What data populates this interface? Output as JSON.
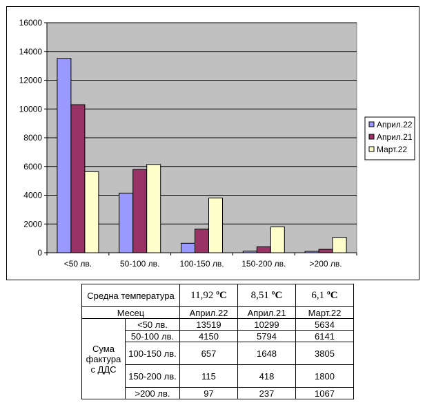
{
  "chart_data": {
    "type": "bar",
    "categories": [
      "<50 лв.",
      "50-100 лв.",
      "100-150 лв.",
      "150-200 лв.",
      ">200 лв."
    ],
    "series": [
      {
        "name": "Април.22",
        "values": [
          13519,
          4150,
          657,
          115,
          97
        ],
        "color": "#9999FF"
      },
      {
        "name": "Април.21",
        "values": [
          10299,
          5794,
          1648,
          418,
          237
        ],
        "color": "#993366"
      },
      {
        "name": "Март.22",
        "values": [
          5634,
          6141,
          3805,
          1800,
          1067
        ],
        "color": "#FFFFCC"
      }
    ],
    "ylim": [
      0,
      16000
    ],
    "yticks": [
      "0",
      "2000",
      "4000",
      "6000",
      "8000",
      "10000",
      "12000",
      "14000",
      "16000"
    ],
    "ytick_values": [
      0,
      2000,
      4000,
      6000,
      8000,
      10000,
      12000,
      14000,
      16000
    ],
    "plot_background": "#C0C0C0",
    "grid": true,
    "legend_position": "right"
  },
  "table": {
    "temp_label": "Средна температура",
    "temps": [
      {
        "value": "11,92",
        "unit": "ºC"
      },
      {
        "value": "8,51",
        "unit": "ºC"
      },
      {
        "value": "6,1",
        "unit": "ºC"
      }
    ],
    "month_label": "Месец",
    "months": [
      "Април.22",
      "Април.21",
      "Март.22"
    ],
    "group_label": "Сума фактура с ДДС",
    "rows": [
      {
        "label": "<50 лв.",
        "values": [
          "13519",
          "10299",
          "5634"
        ]
      },
      {
        "label": "50-100 лв.",
        "values": [
          "4150",
          "5794",
          "6141"
        ]
      },
      {
        "label": "100-150 лв.",
        "values": [
          "657",
          "1648",
          "3805"
        ]
      },
      {
        "label": "150-200 лв.",
        "values": [
          "115",
          "418",
          "1800"
        ]
      },
      {
        "label": ">200 лв.",
        "values": [
          "97",
          "237",
          "1067"
        ]
      }
    ]
  }
}
